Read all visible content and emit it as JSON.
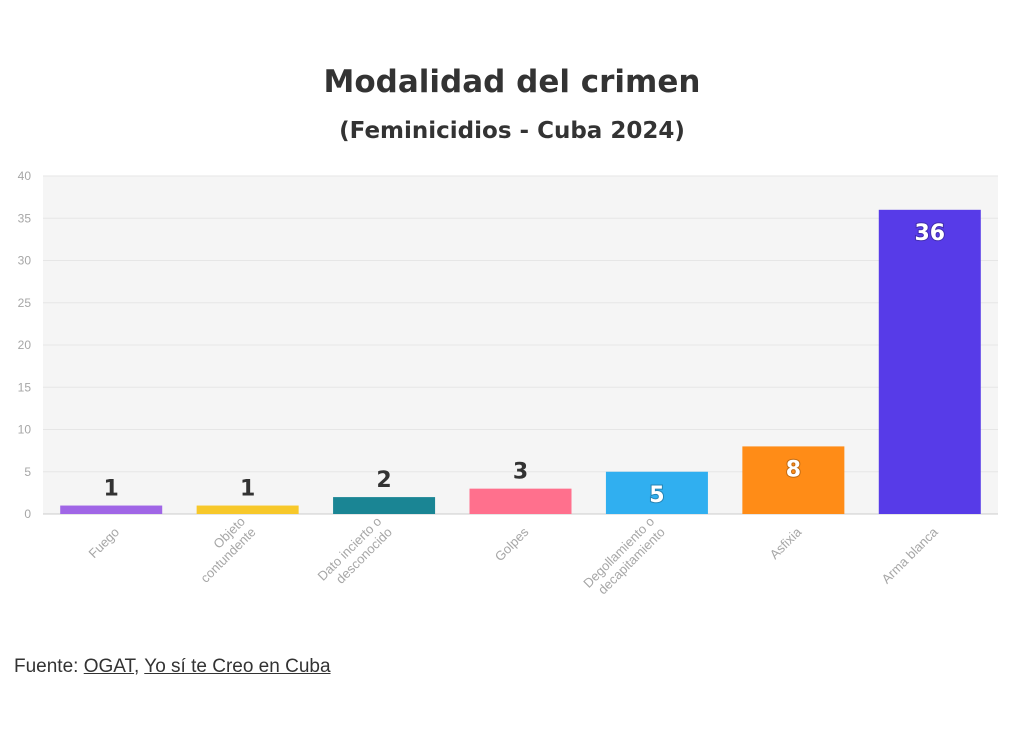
{
  "chart_data": {
    "type": "bar",
    "title": "Modalidad del crimen",
    "subtitle": "(Feminicidios - Cuba 2024)",
    "xlabel": "",
    "ylabel": "",
    "ylim": [
      0,
      40
    ],
    "yticks": [
      0,
      5,
      10,
      15,
      20,
      25,
      30,
      35,
      40
    ],
    "grid": true,
    "legend": "none",
    "categories": [
      "Fuego",
      "Objeto contundente",
      "Dato incierto o desconocido",
      "Golpes",
      "Degollamiento o decapitamiento",
      "Asfixia",
      "Arma blanca"
    ],
    "category_lines": [
      [
        "Fuego"
      ],
      [
        "Objeto",
        "contundente"
      ],
      [
        "Dato incierto o",
        "desconocido"
      ],
      [
        "Golpes"
      ],
      [
        "Degollamiento o",
        "decapitamiento"
      ],
      [
        "Asfixia"
      ],
      [
        "Arma blanca"
      ]
    ],
    "values": [
      1,
      1,
      2,
      3,
      5,
      8,
      36
    ],
    "colors": [
      "#a066e6",
      "#f7c82a",
      "#1a8594",
      "#ff708d",
      "#30aff0",
      "#ff8c17",
      "#573be8"
    ],
    "data_labels": [
      "1",
      "1",
      "2",
      "3",
      "5",
      "8",
      "36"
    ]
  },
  "source": {
    "prefix": "Fuente: ",
    "link1": "OGAT",
    "separator": ", ",
    "link2": "Yo sí te Creo en Cuba"
  }
}
